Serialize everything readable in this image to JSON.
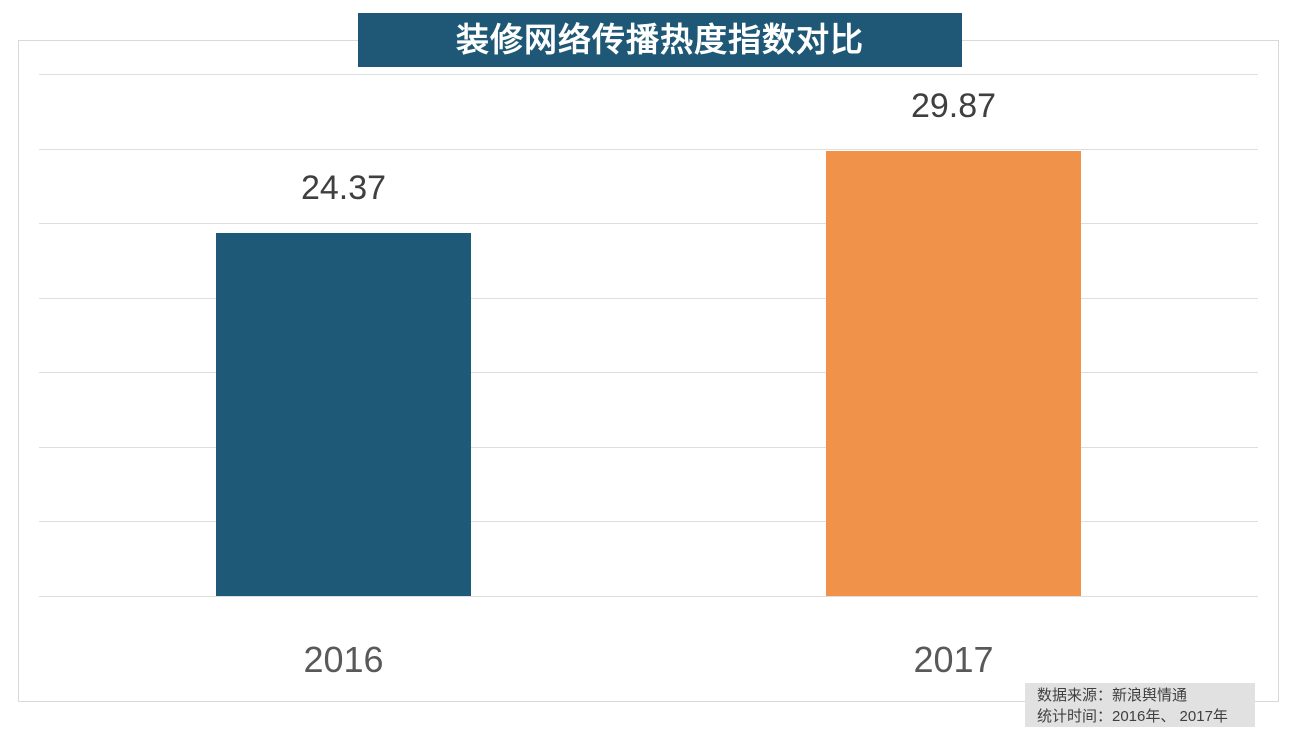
{
  "chart_data": {
    "type": "bar",
    "title": "装修网络传播热度指数对比",
    "categories": [
      "2016",
      "2017"
    ],
    "values": [
      24.37,
      29.87
    ],
    "value_labels": [
      "24.37",
      "29.87"
    ],
    "series": [
      {
        "name": "装修网络传播热度指数",
        "values": [
          24.37,
          29.87
        ]
      }
    ],
    "bar_colors": [
      "#1e5a78",
      "#f0924a"
    ],
    "xlabel": "",
    "ylabel": "",
    "ylim": [
      0,
      35
    ],
    "grid_step": 5,
    "grid": true,
    "legend": false
  },
  "footer": {
    "source": "数据来源：新浪舆情通",
    "period": "统计时间：2016年、 2017年"
  },
  "colors": {
    "title_bg": "#1e5876",
    "title_text": "#ffffff",
    "gridline": "#dedede",
    "box_border": "#d9d9d9",
    "value_label": "#3f3f3f",
    "category_label": "#595959",
    "footer_bg": "#e1e1e1",
    "footer_text": "#404040"
  }
}
